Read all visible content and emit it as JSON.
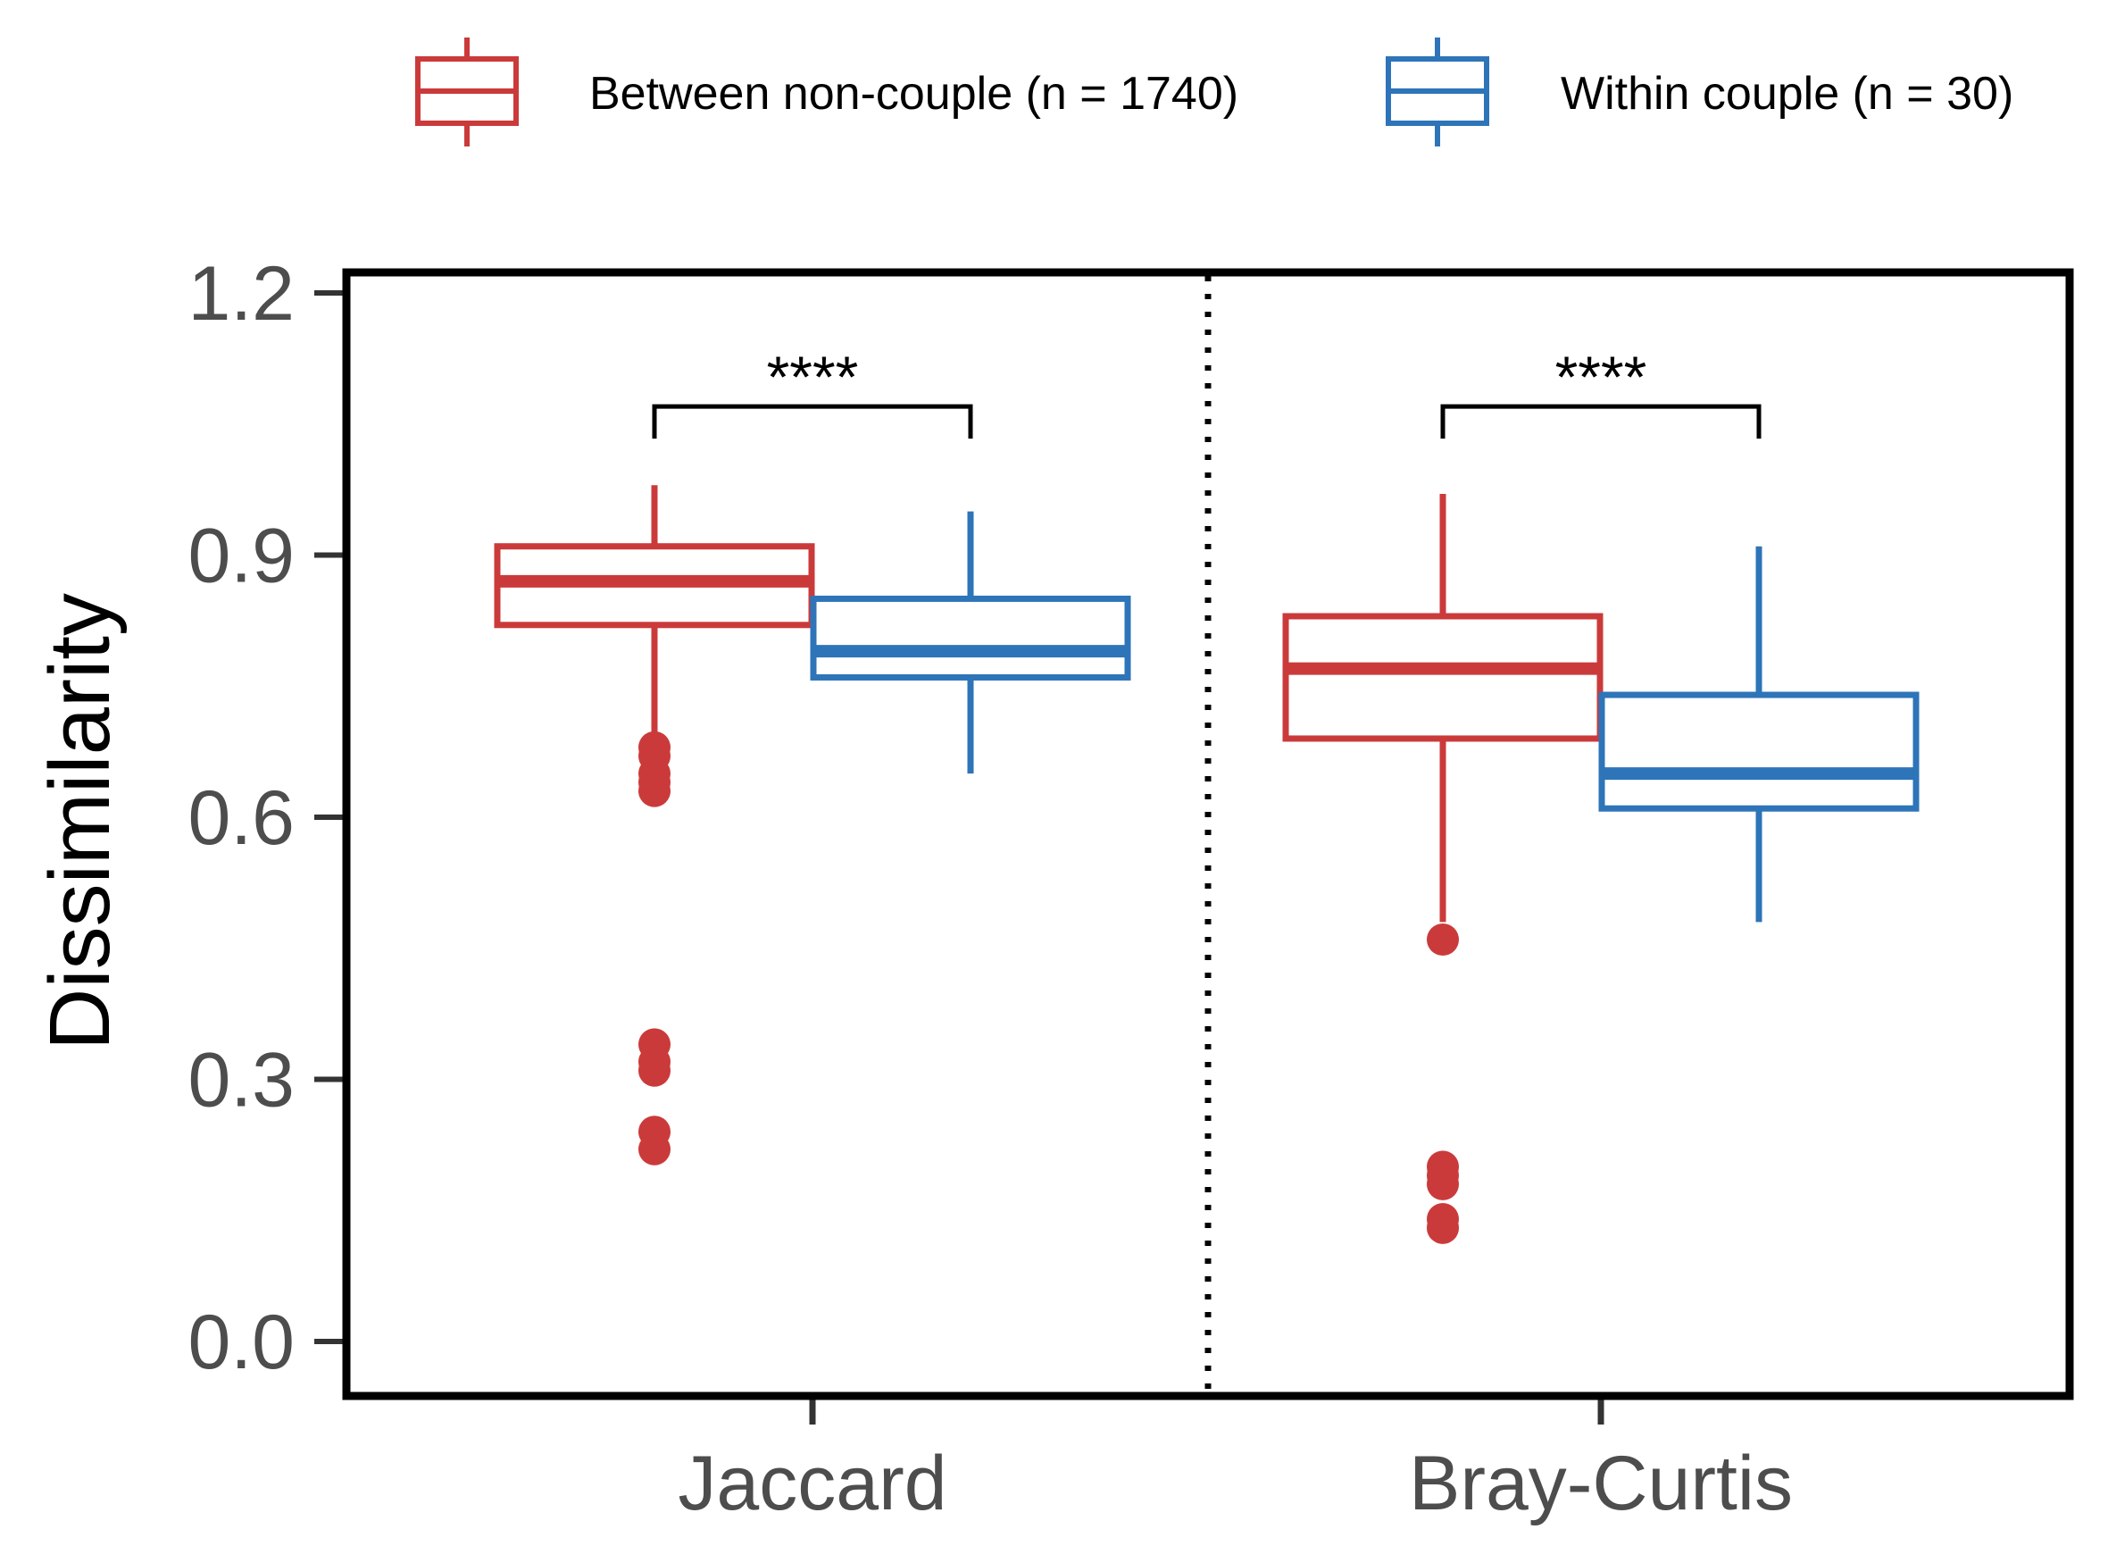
{
  "chart_data": {
    "type": "boxplot",
    "title": "",
    "xlabel": "",
    "ylabel": "Dissimilarity",
    "ylim": [
      -0.05,
      1.23
    ],
    "yticks": [
      0.0,
      0.3,
      0.6,
      0.9,
      1.2
    ],
    "ytick_labels": [
      "0.0",
      "0.3",
      "0.6",
      "0.9",
      "1.2"
    ],
    "categories": [
      "Jaccard",
      "Bray-Curtis"
    ],
    "legend_position": "top",
    "series": [
      {
        "name": "Between non-couple (n = 1740)",
        "color": "#cb3a3a",
        "boxes": [
          {
            "category": "Jaccard",
            "whisker_low": 0.69,
            "q1": 0.82,
            "median": 0.87,
            "q3": 0.91,
            "whisker_high": 0.98,
            "outliers": [
              0.68,
              0.67,
              0.65,
              0.64,
              0.63,
              0.34,
              0.32,
              0.31,
              0.24,
              0.22
            ]
          },
          {
            "category": "Bray-Curtis",
            "whisker_low": 0.48,
            "q1": 0.69,
            "median": 0.77,
            "q3": 0.83,
            "whisker_high": 0.97,
            "outliers": [
              0.46,
              0.2,
              0.19,
              0.18,
              0.14,
              0.13
            ]
          }
        ]
      },
      {
        "name": "Within couple (n = 30)",
        "color": "#2e74b8",
        "boxes": [
          {
            "category": "Jaccard",
            "whisker_low": 0.65,
            "q1": 0.76,
            "median": 0.79,
            "q3": 0.85,
            "whisker_high": 0.95,
            "outliers": []
          },
          {
            "category": "Bray-Curtis",
            "whisker_low": 0.48,
            "q1": 0.61,
            "median": 0.65,
            "q3": 0.74,
            "whisker_high": 0.91,
            "outliers": []
          }
        ]
      }
    ],
    "significance": [
      {
        "category": "Jaccard",
        "y": 1.07,
        "label": "****"
      },
      {
        "category": "Bray-Curtis",
        "y": 1.07,
        "label": "****"
      }
    ],
    "separator": "dotted vertical line between groups"
  }
}
